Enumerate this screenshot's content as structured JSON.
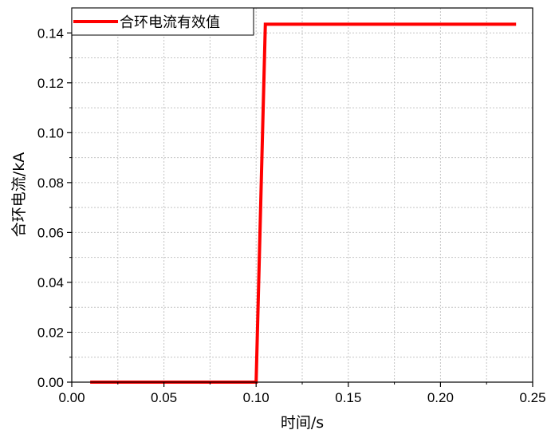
{
  "chart_data": {
    "type": "line",
    "xlabel": "时间/s",
    "ylabel": "合环电流/kA",
    "xlim": [
      0.0,
      0.25
    ],
    "ylim": [
      0.0,
      0.15
    ],
    "x_ticks": [
      "0.00",
      "0.05",
      "0.10",
      "0.15",
      "0.20",
      "0.25"
    ],
    "y_ticks": [
      "0.00",
      "0.02",
      "0.04",
      "0.06",
      "0.08",
      "0.10",
      "0.12",
      "0.14"
    ],
    "grid": true,
    "legend_position": "top-left",
    "series": [
      {
        "name": "合环电流有效值",
        "color": "#ff0000",
        "x": [
          0.01,
          0.1,
          0.105,
          0.241
        ],
        "y": [
          0.0,
          0.0,
          0.1435,
          0.1435
        ]
      }
    ]
  }
}
